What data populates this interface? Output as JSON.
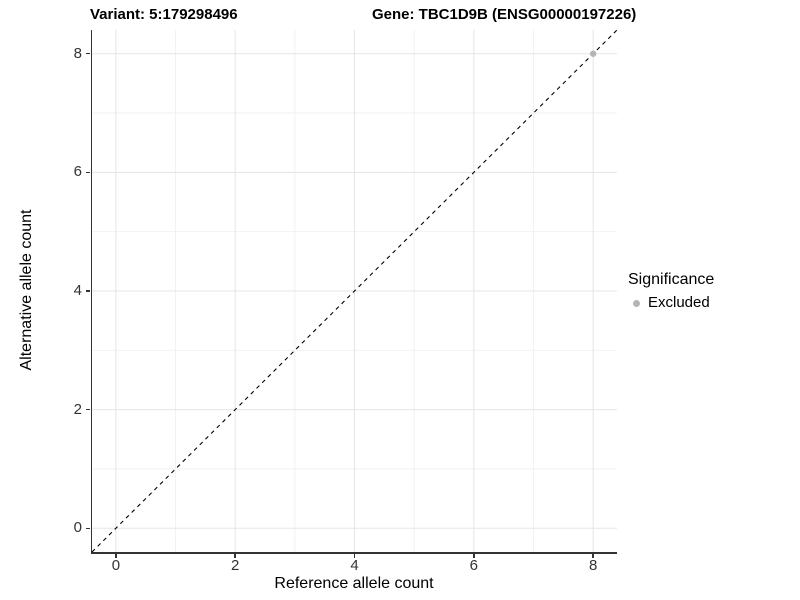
{
  "chart_data": {
    "type": "scatter",
    "title_left": "Variant: 5:179298496",
    "title_right": "Gene: TBC1D9B (ENSG00000197226)",
    "xlabel": "Reference allele count",
    "ylabel": "Alternative allele count",
    "xlim": [
      -0.4,
      8.4
    ],
    "ylim": [
      -0.4,
      8.4
    ],
    "x_ticks": [
      0,
      2,
      4,
      6,
      8
    ],
    "y_ticks": [
      0,
      2,
      4,
      6,
      8
    ],
    "x_minor_grid": [
      1,
      3,
      5,
      7
    ],
    "y_minor_grid": [
      1,
      3,
      5,
      7
    ],
    "grid": "on",
    "identity_line": {
      "slope": 1,
      "intercept": 0,
      "linestyle": "dashed",
      "color": "#000000"
    },
    "series": [
      {
        "name": "Excluded",
        "marker": "circle",
        "color": "#B5B5B5",
        "points": [
          {
            "x": 8,
            "y": 8
          }
        ]
      }
    ],
    "legend": {
      "title": "Significance",
      "position": "right",
      "entries": [
        {
          "label": "Excluded",
          "color": "#B5B5B5",
          "marker": "circle"
        }
      ]
    }
  },
  "colors": {
    "background": "#FFFFFF",
    "grid_major": "#E5E5E5",
    "grid_minor": "#F2F2F2",
    "axis_line": "#333333",
    "tick_label": "#333333",
    "title_text": "#000000"
  }
}
